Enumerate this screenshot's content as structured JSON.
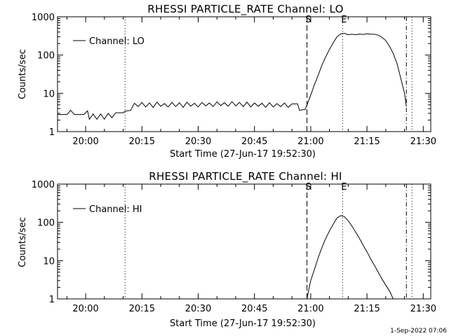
{
  "footer": {
    "timestamp": "1-Sep-2022 07:06"
  },
  "chart_data": [
    {
      "type": "line",
      "title": "RHESSI PARTICLE_RATE Channel: LO",
      "xlabel": "Start Time (27-Jun-17 19:52:30)",
      "ylabel": "Counts/sec",
      "y_scale": "log",
      "ylim": [
        1,
        1000
      ],
      "xlim": [
        "19:52:30",
        "21:32:00"
      ],
      "x_ticks": [
        "20:00",
        "20:15",
        "20:30",
        "20:45",
        "21:00",
        "21:15",
        "21:30"
      ],
      "y_ticks": [
        "1",
        "10",
        "100",
        "1000"
      ],
      "legend": {
        "position": "top-left",
        "entries": [
          "Channel: LO"
        ]
      },
      "markers": [
        {
          "label": "S",
          "time": "20:59:00",
          "style": "dashed"
        },
        {
          "label": "E",
          "time": "21:08:30",
          "style": "dotted"
        },
        {
          "label": "",
          "time": "20:10:30",
          "style": "dotted"
        },
        {
          "label": "",
          "time": "21:25:30",
          "style": "dash-dot"
        },
        {
          "label": "",
          "time": "21:27:00",
          "style": "dotted"
        }
      ],
      "series": [
        {
          "name": "Channel: LO",
          "color": "#000000",
          "points": [
            [
              "19:52:30",
              2.8
            ],
            [
              "19:55:00",
              2.8
            ],
            [
              "19:56:00",
              3.6
            ],
            [
              "19:57:00",
              2.8
            ],
            [
              "19:59:30",
              2.8
            ],
            [
              "20:00:30",
              3.5
            ],
            [
              "20:01:00",
              2.1
            ],
            [
              "20:02:00",
              2.9
            ],
            [
              "20:03:00",
              2.1
            ],
            [
              "20:04:00",
              2.9
            ],
            [
              "20:05:00",
              2.1
            ],
            [
              "20:06:00",
              3.0
            ],
            [
              "20:07:00",
              2.3
            ],
            [
              "20:08:00",
              3.1
            ],
            [
              "20:10:00",
              3.1
            ],
            [
              "20:10:30",
              3.4
            ],
            [
              "20:12:00",
              3.6
            ],
            [
              "20:13:00",
              5.5
            ],
            [
              "20:14:00",
              4.5
            ],
            [
              "20:15:00",
              5.8
            ],
            [
              "20:16:00",
              4.4
            ],
            [
              "20:17:00",
              5.6
            ],
            [
              "20:18:00",
              4.3
            ],
            [
              "20:19:00",
              5.9
            ],
            [
              "20:20:00",
              4.6
            ],
            [
              "20:21:00",
              5.4
            ],
            [
              "20:22:00",
              4.4
            ],
            [
              "20:23:00",
              5.8
            ],
            [
              "20:24:00",
              4.5
            ],
            [
              "20:25:00",
              5.7
            ],
            [
              "20:26:00",
              4.3
            ],
            [
              "20:27:00",
              5.9
            ],
            [
              "20:28:00",
              4.6
            ],
            [
              "20:29:00",
              5.5
            ],
            [
              "20:30:00",
              4.4
            ],
            [
              "20:31:00",
              5.8
            ],
            [
              "20:32:00",
              4.7
            ],
            [
              "20:33:00",
              5.6
            ],
            [
              "20:34:00",
              4.5
            ],
            [
              "20:35:00",
              6.0
            ],
            [
              "20:36:00",
              4.8
            ],
            [
              "20:37:00",
              5.7
            ],
            [
              "20:38:00",
              4.6
            ],
            [
              "20:39:00",
              6.1
            ],
            [
              "20:40:00",
              4.7
            ],
            [
              "20:41:00",
              5.8
            ],
            [
              "20:42:00",
              4.5
            ],
            [
              "20:43:00",
              5.9
            ],
            [
              "20:44:00",
              4.4
            ],
            [
              "20:45:00",
              5.6
            ],
            [
              "20:46:00",
              4.6
            ],
            [
              "20:47:00",
              5.5
            ],
            [
              "20:48:00",
              4.3
            ],
            [
              "20:49:00",
              5.7
            ],
            [
              "20:50:00",
              4.4
            ],
            [
              "20:51:00",
              5.4
            ],
            [
              "20:52:00",
              4.5
            ],
            [
              "20:53:00",
              5.6
            ],
            [
              "20:54:00",
              4.3
            ],
            [
              "20:55:00",
              5.3
            ],
            [
              "20:56:30",
              5.3
            ],
            [
              "20:57:00",
              3.6
            ],
            [
              "20:58:30",
              3.8
            ],
            [
              "20:59:00",
              5.0
            ],
            [
              "21:00:00",
              9
            ],
            [
              "21:01:00",
              17
            ],
            [
              "21:02:00",
              30
            ],
            [
              "21:03:00",
              55
            ],
            [
              "21:04:00",
              90
            ],
            [
              "21:05:00",
              140
            ],
            [
              "21:06:00",
              210
            ],
            [
              "21:07:00",
              300
            ],
            [
              "21:08:00",
              360
            ],
            [
              "21:09:00",
              370
            ],
            [
              "21:10:00",
              340
            ],
            [
              "21:11:00",
              350
            ],
            [
              "21:12:00",
              340
            ],
            [
              "21:13:00",
              355
            ],
            [
              "21:14:00",
              345
            ],
            [
              "21:15:00",
              360
            ],
            [
              "21:16:00",
              350
            ],
            [
              "21:17:00",
              350
            ],
            [
              "21:18:00",
              330
            ],
            [
              "21:19:00",
              290
            ],
            [
              "21:20:00",
              240
            ],
            [
              "21:21:00",
              170
            ],
            [
              "21:22:00",
              110
            ],
            [
              "21:23:00",
              60
            ],
            [
              "21:24:00",
              25
            ],
            [
              "21:25:00",
              10
            ],
            [
              "21:25:30",
              4.5
            ]
          ]
        }
      ]
    },
    {
      "type": "line",
      "title": "RHESSI PARTICLE_RATE Channel: HI",
      "xlabel": "Start Time (27-Jun-17 19:52:30)",
      "ylabel": "Counts/sec",
      "y_scale": "log",
      "ylim": [
        1,
        1000
      ],
      "xlim": [
        "19:52:30",
        "21:32:00"
      ],
      "x_ticks": [
        "20:00",
        "20:15",
        "20:30",
        "20:45",
        "21:00",
        "21:15",
        "21:30"
      ],
      "y_ticks": [
        "1",
        "10",
        "100",
        "1000"
      ],
      "legend": {
        "position": "top-left",
        "entries": [
          "Channel: HI"
        ]
      },
      "markers": [
        {
          "label": "S",
          "time": "20:59:00",
          "style": "dashed"
        },
        {
          "label": "E",
          "time": "21:08:30",
          "style": "dotted"
        },
        {
          "label": "",
          "time": "20:10:30",
          "style": "dotted"
        },
        {
          "label": "",
          "time": "21:25:30",
          "style": "dash-dot"
        },
        {
          "label": "",
          "time": "21:27:00",
          "style": "dotted"
        }
      ],
      "series": [
        {
          "name": "Channel: HI",
          "color": "#000000",
          "points": [
            [
              "20:59:00",
              1.0
            ],
            [
              "20:59:30",
              1.8
            ],
            [
              "21:00:00",
              3
            ],
            [
              "21:01:00",
              6
            ],
            [
              "21:02:00",
              12
            ],
            [
              "21:03:00",
              22
            ],
            [
              "21:04:00",
              38
            ],
            [
              "21:05:00",
              60
            ],
            [
              "21:06:00",
              90
            ],
            [
              "21:07:00",
              130
            ],
            [
              "21:08:00",
              150
            ],
            [
              "21:09:00",
              140
            ],
            [
              "21:10:00",
              110
            ],
            [
              "21:11:00",
              80
            ],
            [
              "21:12:00",
              55
            ],
            [
              "21:13:00",
              38
            ],
            [
              "21:14:00",
              25
            ],
            [
              "21:15:00",
              17
            ],
            [
              "21:16:00",
              11
            ],
            [
              "21:17:00",
              7.5
            ],
            [
              "21:18:00",
              5
            ],
            [
              "21:19:00",
              3.3
            ],
            [
              "21:20:00",
              2.3
            ],
            [
              "21:21:00",
              1.6
            ],
            [
              "21:22:00",
              1.0
            ]
          ]
        }
      ]
    }
  ]
}
